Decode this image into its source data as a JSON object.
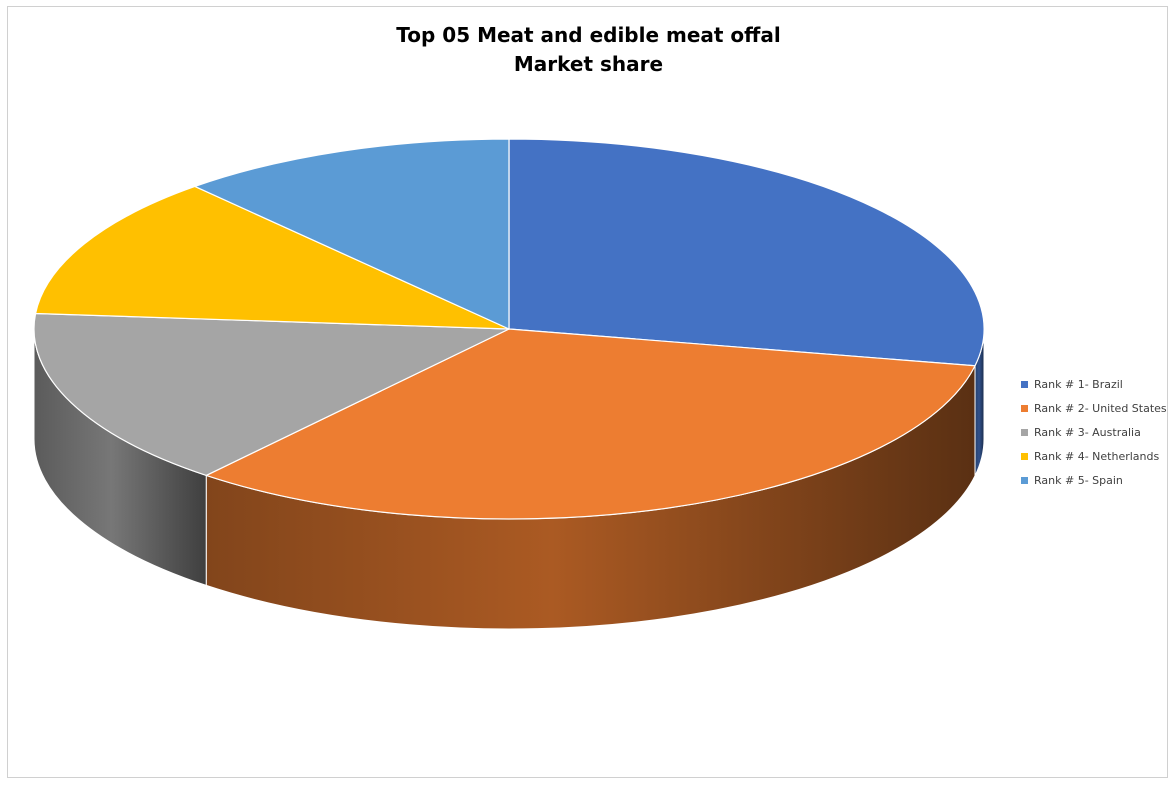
{
  "chart_data": {
    "type": "pie",
    "title": [
      "Top 05 Meat and edible meat offal",
      "Market share"
    ],
    "categories": [
      "Rank # 1-  Brazil",
      "Rank # 2-  United States",
      "Rank # 3-  Australia",
      "Rank # 4-  Netherlands",
      "Rank # 5-  Spain"
    ],
    "values": [
      28.1,
      32.9,
      15.3,
      12.2,
      11.5
    ],
    "colors": [
      "#4472C4",
      "#ED7D31",
      "#A5A5A5",
      "#FFC000",
      "#5B9BD5"
    ],
    "legend_position": "right",
    "style": "3d-pie"
  }
}
